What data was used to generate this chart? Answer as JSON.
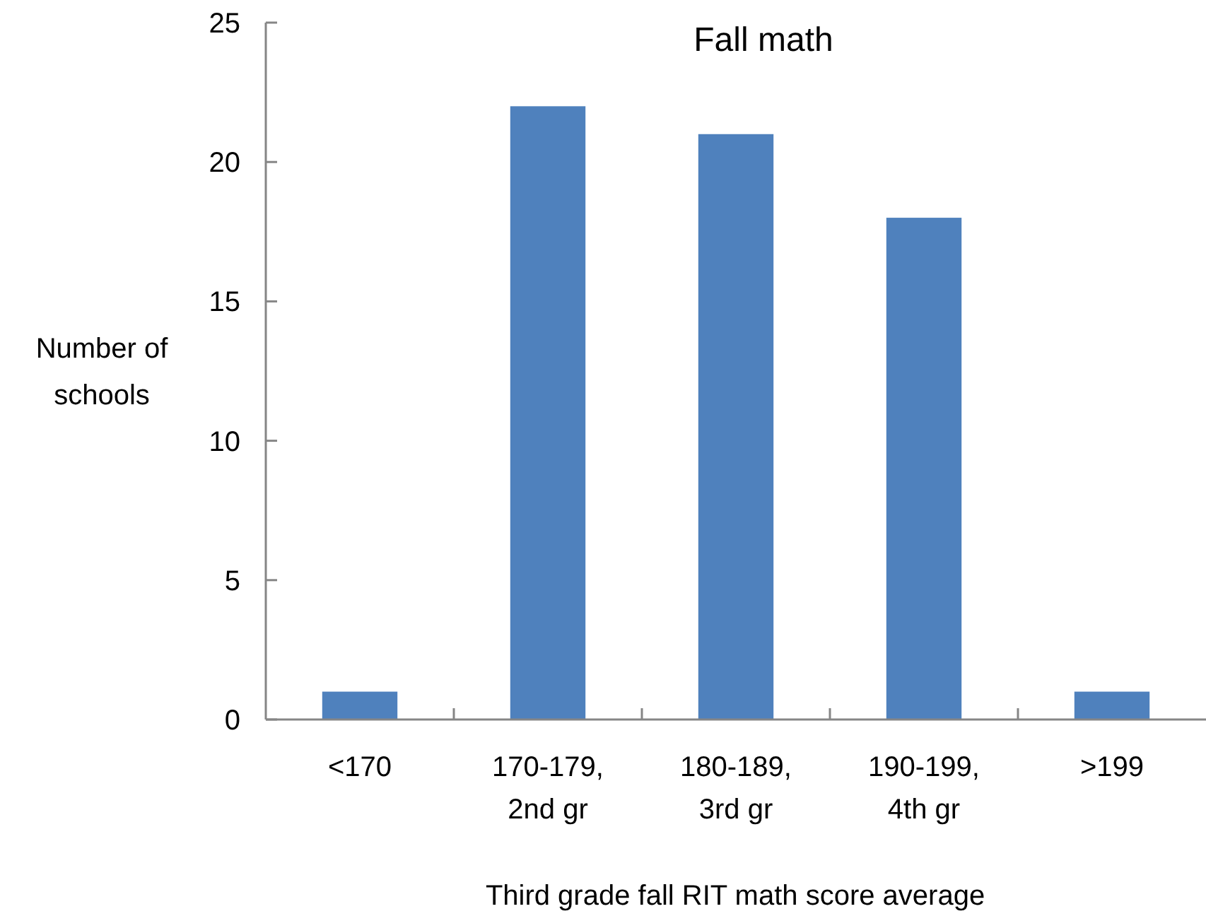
{
  "chart_data": {
    "type": "bar",
    "title": "Fall math",
    "xlabel": "Third grade fall RIT math score average",
    "ylabel": "Number of\nschools",
    "categories": [
      "<170",
      "170-179,\n2nd gr",
      "180-189,\n3rd gr",
      "190-199,\n4th gr",
      ">199"
    ],
    "values": [
      1,
      22,
      21,
      18,
      1
    ],
    "color": "#4f81bd",
    "ylim": [
      0,
      25
    ],
    "yticks": [
      0,
      5,
      10,
      15,
      20,
      25
    ]
  }
}
